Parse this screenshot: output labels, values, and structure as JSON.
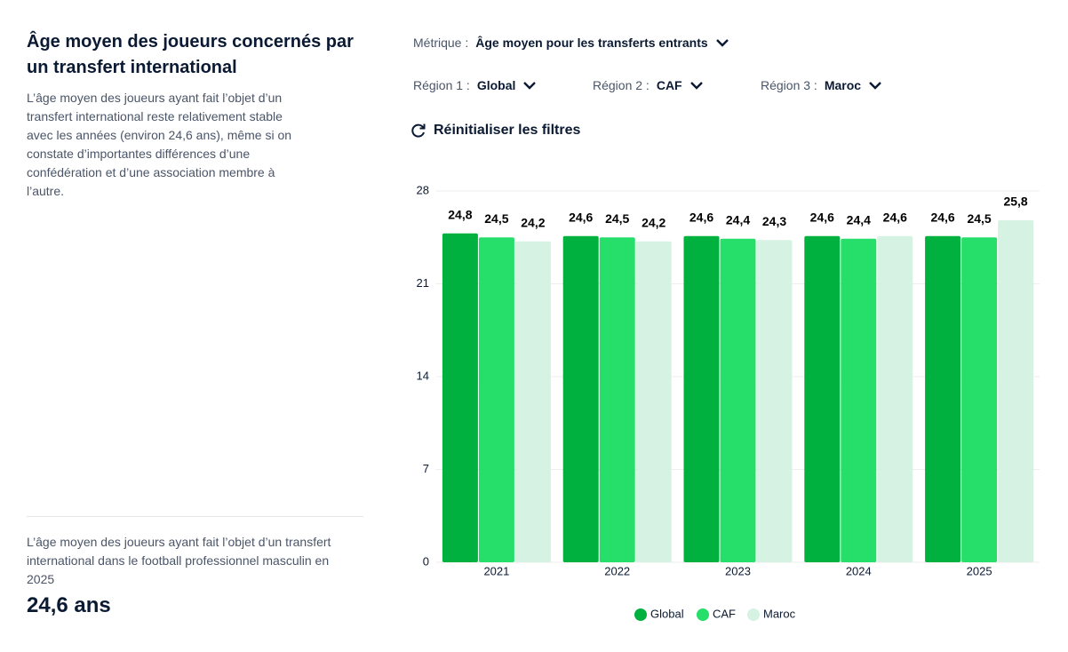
{
  "panel": {
    "title": "Âge moyen des joueurs concernés par un transfert international",
    "description": "L’âge moyen des joueurs ayant fait l’objet d’un transfert international reste relativement stable avec les années (environ 24,6 ans), même si on constate d’importantes différences d’une confédération et d’une association membre à l’autre.",
    "footnote": "L’âge moyen des joueurs ayant fait l’objet d’un transfert international dans le football professionnel masculin en 2025",
    "highlight": "24,6 ans"
  },
  "filters": {
    "metric_label": "Métrique :",
    "metric_value": "Âge moyen pour les transferts entrants",
    "regions": [
      {
        "label": "Région 1 :",
        "value": "Global"
      },
      {
        "label": "Région 2 :",
        "value": "CAF"
      },
      {
        "label": "Région 3 :",
        "value": "Maroc"
      }
    ],
    "reset": "Réinitialiser les filtres"
  },
  "chart_data": {
    "type": "bar",
    "categories": [
      "2021",
      "2022",
      "2023",
      "2024",
      "2025"
    ],
    "series": [
      {
        "name": "Global",
        "color": "#00b140",
        "values": [
          24.8,
          24.6,
          24.6,
          24.6,
          24.6
        ],
        "value_labels": [
          "24,8",
          "24,6",
          "24,6",
          "24,6",
          "24,6"
        ]
      },
      {
        "name": "CAF",
        "color": "#26de6a",
        "values": [
          24.5,
          24.5,
          24.4,
          24.4,
          24.5
        ],
        "value_labels": [
          "24,5",
          "24,5",
          "24,4",
          "24,4",
          "24,5"
        ]
      },
      {
        "name": "Maroc",
        "color": "#d6f2e2",
        "values": [
          24.2,
          24.2,
          24.3,
          24.6,
          25.8
        ],
        "value_labels": [
          "24,2",
          "24,2",
          "24,3",
          "24,6",
          "25,8"
        ]
      }
    ],
    "ylim": [
      0,
      28
    ],
    "yticks": [
      0,
      7,
      14,
      21,
      28
    ],
    "grid": true
  }
}
